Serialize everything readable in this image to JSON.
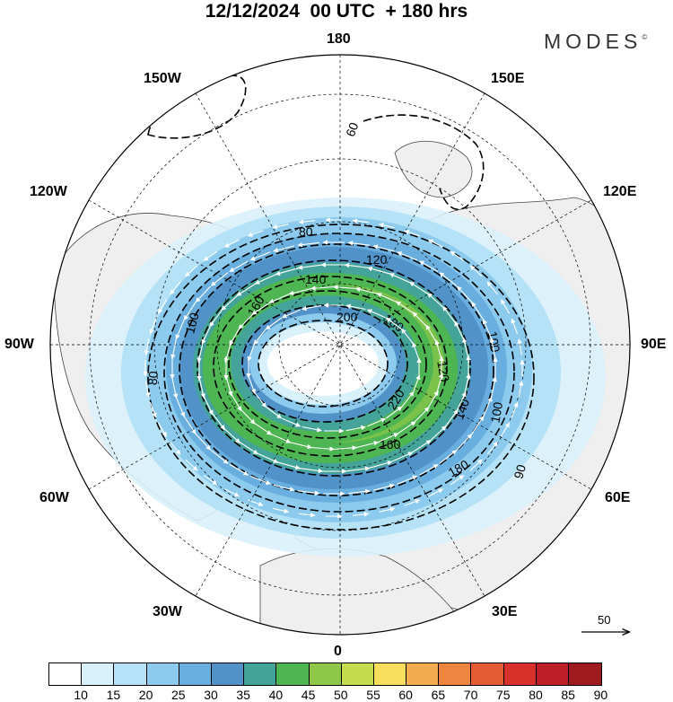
{
  "header": {
    "title": "12/12/2024  00 UTC  + 180 hrs",
    "brand": "MODES",
    "brand_mark": "©"
  },
  "map": {
    "projection": "north-polar-stereographic",
    "longitude_labels": {
      "top": "180",
      "bottom": "0",
      "left": "90W",
      "right": "90E",
      "upper_left": "150W",
      "upper_right": "150E",
      "mid_upper_left": "120W",
      "mid_upper_right": "120E",
      "mid_lower_left": "60W",
      "mid_lower_right": "60E",
      "lower_left": "30W",
      "lower_right": "30E"
    },
    "contour_labels": [
      "60",
      "80",
      "100",
      "120",
      "140",
      "160",
      "180",
      "200",
      "220",
      "80",
      "90",
      "100",
      "120",
      "140",
      "160",
      "180",
      "100"
    ],
    "colors": {
      "land": "#efefef",
      "coast": "#222222",
      "grid": "#000000",
      "contour": "#000000",
      "vectors": "#ffffff"
    }
  },
  "reference_vector": {
    "label": "50"
  },
  "colorbar": {
    "ticks": [
      "10",
      "15",
      "20",
      "25",
      "30",
      "35",
      "40",
      "45",
      "50",
      "55",
      "60",
      "65",
      "70",
      "75",
      "80",
      "85",
      "90"
    ],
    "colors": [
      "#ffffff",
      "#d9f1fb",
      "#b5e2f6",
      "#8ccbee",
      "#68aede",
      "#5193c8",
      "#44a49a",
      "#4db551",
      "#8fc748",
      "#c6dc4f",
      "#f7de5c",
      "#f4ad4e",
      "#ee8640",
      "#e55b33",
      "#d8302b",
      "#bc1f26",
      "#9d1a1f"
    ]
  }
}
